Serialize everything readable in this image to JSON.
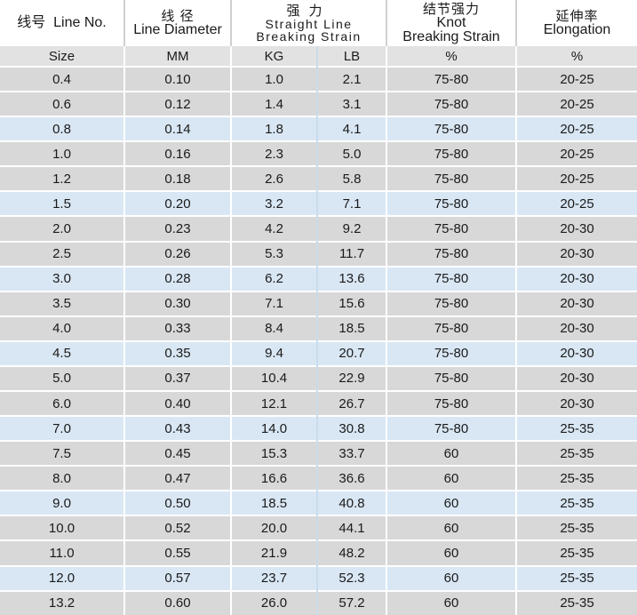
{
  "header": {
    "size_label_cn": "线号",
    "size_label_en": "Line No.",
    "diameter_cn": "线 径",
    "diameter_en": "Line Diameter",
    "strength_cn": "强力",
    "strength_en_1": "Straight Line",
    "strength_en_2": "Breaking Strain",
    "knot_cn": "结节强力",
    "knot_en_1": "Knot",
    "knot_en_2": "Breaking Strain",
    "elong_cn": "延伸率",
    "elong_en": "Elongation"
  },
  "units": {
    "size": "Size",
    "diameter": "MM",
    "kg": "KG",
    "lb": "LB",
    "knot": "%",
    "elong": "%"
  },
  "rows": [
    {
      "size": "0.4",
      "mm": "0.10",
      "kg": "1.0",
      "lb": "2.1",
      "knot": "75-80",
      "elong": "20-25"
    },
    {
      "size": "0.6",
      "mm": "0.12",
      "kg": "1.4",
      "lb": "3.1",
      "knot": "75-80",
      "elong": "20-25"
    },
    {
      "size": "0.8",
      "mm": "0.14",
      "kg": "1.8",
      "lb": "4.1",
      "knot": "75-80",
      "elong": "20-25"
    },
    {
      "size": "1.0",
      "mm": "0.16",
      "kg": "2.3",
      "lb": "5.0",
      "knot": "75-80",
      "elong": "20-25"
    },
    {
      "size": "1.2",
      "mm": "0.18",
      "kg": "2.6",
      "lb": "5.8",
      "knot": "75-80",
      "elong": "20-25"
    },
    {
      "size": "1.5",
      "mm": "0.20",
      "kg": "3.2",
      "lb": "7.1",
      "knot": "75-80",
      "elong": "20-25"
    },
    {
      "size": "2.0",
      "mm": "0.23",
      "kg": "4.2",
      "lb": "9.2",
      "knot": "75-80",
      "elong": "20-30"
    },
    {
      "size": "2.5",
      "mm": "0.26",
      "kg": "5.3",
      "lb": "11.7",
      "knot": "75-80",
      "elong": "20-30"
    },
    {
      "size": "3.0",
      "mm": "0.28",
      "kg": "6.2",
      "lb": "13.6",
      "knot": "75-80",
      "elong": "20-30"
    },
    {
      "size": "3.5",
      "mm": "0.30",
      "kg": "7.1",
      "lb": "15.6",
      "knot": "75-80",
      "elong": "20-30"
    },
    {
      "size": "4.0",
      "mm": "0.33",
      "kg": "8.4",
      "lb": "18.5",
      "knot": "75-80",
      "elong": "20-30"
    },
    {
      "size": "4.5",
      "mm": "0.35",
      "kg": "9.4",
      "lb": "20.7",
      "knot": "75-80",
      "elong": "20-30"
    },
    {
      "size": "5.0",
      "mm": "0.37",
      "kg": "10.4",
      "lb": "22.9",
      "knot": "75-80",
      "elong": "20-30"
    },
    {
      "size": "6.0",
      "mm": "0.40",
      "kg": "12.1",
      "lb": "26.7",
      "knot": "75-80",
      "elong": "20-30"
    },
    {
      "size": "7.0",
      "mm": "0.43",
      "kg": "14.0",
      "lb": "30.8",
      "knot": "75-80",
      "elong": "25-35"
    },
    {
      "size": "7.5",
      "mm": "0.45",
      "kg": "15.3",
      "lb": "33.7",
      "knot": "60",
      "elong": "25-35"
    },
    {
      "size": "8.0",
      "mm": "0.47",
      "kg": "16.6",
      "lb": "36.6",
      "knot": "60",
      "elong": "25-35"
    },
    {
      "size": "9.0",
      "mm": "0.50",
      "kg": "18.5",
      "lb": "40.8",
      "knot": "60",
      "elong": "25-35"
    },
    {
      "size": "10.0",
      "mm": "0.52",
      "kg": "20.0",
      "lb": "44.1",
      "knot": "60",
      "elong": "25-35"
    },
    {
      "size": "11.0",
      "mm": "0.55",
      "kg": "21.9",
      "lb": "48.2",
      "knot": "60",
      "elong": "25-35"
    },
    {
      "size": "12.0",
      "mm": "0.57",
      "kg": "23.7",
      "lb": "52.3",
      "knot": "60",
      "elong": "25-35"
    },
    {
      "size": "13.2",
      "mm": "0.60",
      "kg": "26.0",
      "lb": "57.2",
      "knot": "60",
      "elong": "25-35"
    }
  ],
  "colors": {
    "row_grey": "#d8d8d8",
    "row_blue": "#d9e7f4",
    "row_white": "#ffffff",
    "units_bg": "#e2e2e2"
  }
}
